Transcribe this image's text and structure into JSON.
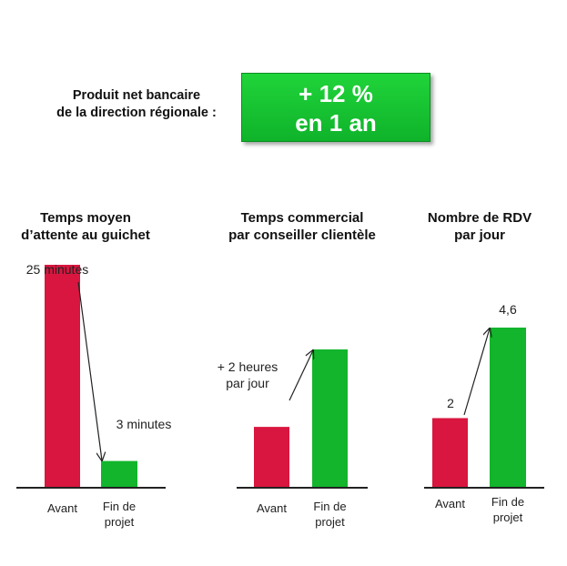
{
  "headline": {
    "label_lines": [
      "Produit net bancaire",
      "de la direction régionale :"
    ],
    "value_lines": [
      "+ 12 %",
      "en 1 an"
    ]
  },
  "colors": {
    "before": "#d9163f",
    "after": "#12b52c",
    "axis": "#222222"
  },
  "chart_data": [
    {
      "type": "bar",
      "title": [
        "Temps moyen",
        "d’attente au guichet"
      ],
      "categories": [
        [
          "Avant"
        ],
        [
          "Fin de",
          "projet"
        ]
      ],
      "values": [
        25,
        3
      ],
      "value_labels": [
        [
          "25 minutes"
        ],
        [
          "3 minutes"
        ]
      ],
      "unit": "minutes",
      "ylim": [
        0,
        27.3
      ],
      "arrow": true
    },
    {
      "type": "bar",
      "title": [
        "Temps commercial",
        "par conseiller clientèle"
      ],
      "categories": [
        [
          "Avant"
        ],
        [
          "Fin de",
          "projet"
        ]
      ],
      "values": [
        null,
        null
      ],
      "value_labels": [
        [
          "+ 2 heures",
          "par jour"
        ],
        []
      ],
      "annotation": "+ 2 heures par jour",
      "relative_heights": [
        0.44,
        1.0
      ],
      "arrow": true
    },
    {
      "type": "bar",
      "title": [
        "Nombre de RDV",
        "par jour"
      ],
      "categories": [
        [
          "Avant"
        ],
        [
          "Fin de",
          "projet"
        ]
      ],
      "values": [
        2,
        4.6
      ],
      "value_labels": [
        [
          "2"
        ],
        [
          "4,6"
        ]
      ],
      "ylim": [
        0,
        5.1
      ],
      "arrow": true
    }
  ]
}
